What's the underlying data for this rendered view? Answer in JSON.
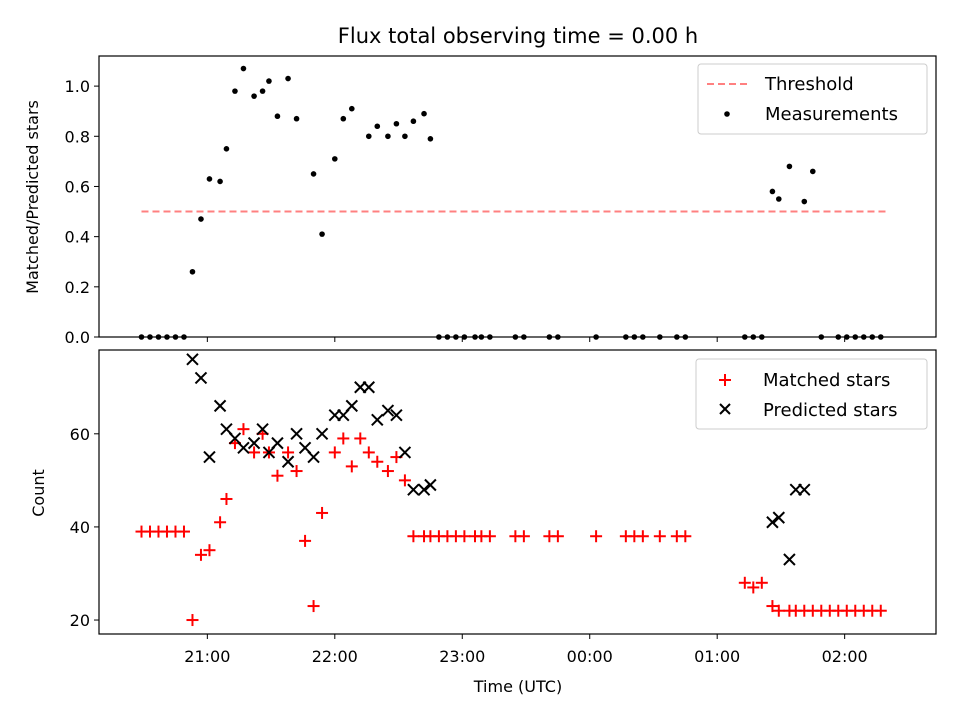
{
  "chart_data": [
    {
      "type": "scatter",
      "title": "Flux total observing time = 0.00 h",
      "ylabel": "Matched/Predicted stars",
      "xlabel": "",
      "ylim": [
        0,
        1.12
      ],
      "xlim": [
        "20:09",
        "02:43"
      ],
      "x_ticks": [
        "21:00",
        "22:00",
        "23:00",
        "00:00",
        "01:00",
        "02:00"
      ],
      "y_ticks": [
        "0.0",
        "0.2",
        "0.4",
        "0.6",
        "0.8",
        "1.0"
      ],
      "y_tick_values": [
        0,
        0.2,
        0.4,
        0.6,
        0.8,
        1.0
      ],
      "legend_position": "top-right",
      "grid": false,
      "series": [
        {
          "name": "Threshold",
          "kind": "line",
          "style": "dashed",
          "color": "#ff8080",
          "x": [
            "20:29",
            "02:21"
          ],
          "y": [
            0.5,
            0.5
          ]
        },
        {
          "name": "Measurements",
          "kind": "scatter",
          "color": "#000000",
          "x": [
            "20:29",
            "20:33",
            "20:37",
            "20:41",
            "20:45",
            "20:49",
            "20:53",
            "20:57",
            "21:01",
            "21:06",
            "21:09",
            "21:13",
            "21:17",
            "21:22",
            "21:26",
            "21:29",
            "21:33",
            "21:38",
            "21:42",
            "21:50",
            "21:54",
            "22:00",
            "22:04",
            "22:08",
            "22:16",
            "22:20",
            "22:25",
            "22:29",
            "22:33",
            "22:37",
            "22:42",
            "22:45",
            "22:49",
            "22:53",
            "22:57",
            "23:01",
            "23:06",
            "23:09",
            "23:13",
            "23:25",
            "23:29",
            "23:41",
            "23:45",
            "00:03",
            "00:17",
            "00:21",
            "00:25",
            "00:33",
            "00:41",
            "00:45",
            "01:13",
            "01:17",
            "01:21",
            "01:26",
            "01:29",
            "01:34",
            "01:41",
            "01:45",
            "01:49",
            "01:57",
            "02:01",
            "02:05",
            "02:09",
            "02:13",
            "02:17"
          ],
          "y": [
            0,
            0,
            0,
            0,
            0,
            0,
            0.26,
            0.47,
            0.63,
            0.62,
            0.75,
            0.98,
            1.07,
            0.96,
            0.98,
            1.02,
            0.88,
            1.03,
            0.87,
            0.65,
            0.41,
            0.71,
            0.87,
            0.91,
            0.8,
            0.84,
            0.8,
            0.85,
            0.8,
            0.86,
            0.89,
            0.79,
            0,
            0,
            0,
            0,
            0,
            0,
            0,
            0,
            0,
            0,
            0,
            0,
            0,
            0,
            0,
            0,
            0,
            0,
            0,
            0,
            0,
            0.58,
            0.55,
            0.68,
            0.54,
            0.66,
            0,
            0,
            0,
            0,
            0,
            0,
            0
          ]
        }
      ]
    },
    {
      "type": "scatter",
      "title": "",
      "ylabel": "Count",
      "xlabel": "Time (UTC)",
      "ylim": [
        17,
        78
      ],
      "xlim": [
        "20:09",
        "02:43"
      ],
      "x_ticks": [
        "21:00",
        "22:00",
        "23:00",
        "00:00",
        "01:00",
        "02:00"
      ],
      "y_ticks": [
        "20",
        "40",
        "60"
      ],
      "y_tick_values": [
        20,
        40,
        60
      ],
      "legend_position": "top-right",
      "grid": false,
      "series": [
        {
          "name": "Matched stars",
          "kind": "plus",
          "color": "#ff0000",
          "x": [
            "20:29",
            "20:33",
            "20:37",
            "20:41",
            "20:45",
            "20:49",
            "20:53",
            "20:57",
            "21:01",
            "21:06",
            "21:09",
            "21:13",
            "21:17",
            "21:22",
            "21:26",
            "21:29",
            "21:33",
            "21:38",
            "21:42",
            "21:46",
            "21:50",
            "21:54",
            "22:00",
            "22:04",
            "22:08",
            "22:12",
            "22:16",
            "22:20",
            "22:25",
            "22:29",
            "22:33",
            "22:37",
            "22:42",
            "22:45",
            "22:49",
            "22:53",
            "22:57",
            "23:01",
            "23:06",
            "23:09",
            "23:13",
            "23:25",
            "23:29",
            "23:41",
            "23:45",
            "00:03",
            "00:17",
            "00:21",
            "00:25",
            "00:33",
            "00:41",
            "00:45",
            "01:13",
            "01:17",
            "01:21",
            "01:26",
            "01:29",
            "01:34",
            "01:37",
            "01:41",
            "01:45",
            "01:49",
            "01:53",
            "01:57",
            "02:01",
            "02:05",
            "02:09",
            "02:13",
            "02:17"
          ],
          "y": [
            39,
            39,
            39,
            39,
            39,
            39,
            20,
            34,
            35,
            41,
            46,
            58,
            61,
            56,
            60,
            56,
            51,
            56,
            52,
            37,
            23,
            43,
            56,
            59,
            53,
            59,
            56,
            54,
            52,
            55,
            50,
            38,
            38,
            38,
            38,
            38,
            38,
            38,
            38,
            38,
            38,
            38,
            38,
            38,
            38,
            38,
            38,
            38,
            38,
            38,
            38,
            38,
            28,
            27,
            28,
            23,
            22,
            22,
            22,
            22,
            22,
            22,
            22,
            22,
            22,
            22,
            22,
            22,
            22
          ]
        },
        {
          "name": "Predicted stars",
          "kind": "cross",
          "color": "#000000",
          "x": [
            "20:53",
            "20:57",
            "21:01",
            "21:06",
            "21:09",
            "21:13",
            "21:17",
            "21:22",
            "21:26",
            "21:29",
            "21:33",
            "21:38",
            "21:42",
            "21:46",
            "21:50",
            "21:54",
            "22:00",
            "22:04",
            "22:08",
            "22:12",
            "22:16",
            "22:20",
            "22:25",
            "22:29",
            "22:33",
            "22:37",
            "22:42",
            "22:45",
            "01:26",
            "01:29",
            "01:34",
            "01:37",
            "01:41"
          ],
          "y": [
            76,
            72,
            55,
            66,
            61,
            59,
            57,
            58,
            61,
            56,
            58,
            54,
            60,
            57,
            55,
            60,
            64,
            64,
            66,
            70,
            70,
            63,
            65,
            64,
            56,
            48,
            48,
            49,
            41,
            42,
            33,
            48,
            48
          ]
        }
      ]
    }
  ]
}
